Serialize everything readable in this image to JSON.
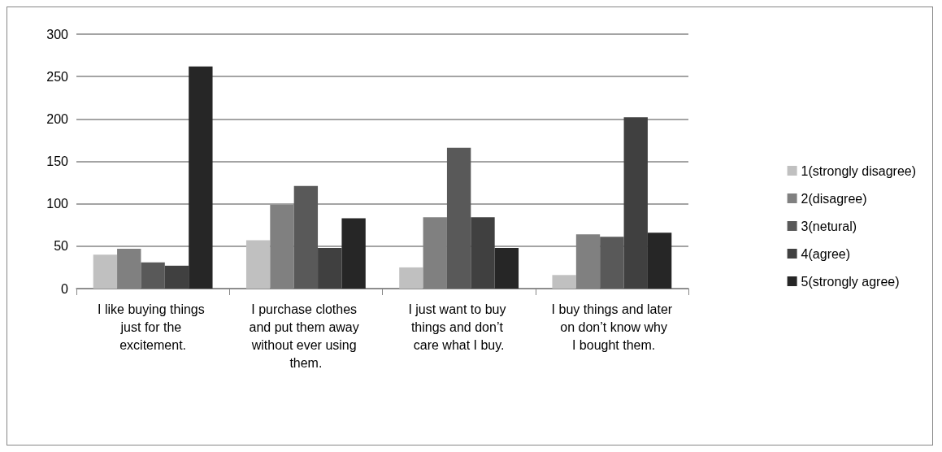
{
  "chart_data": {
    "type": "bar",
    "categories": [
      "I like buying things just for the excitement.",
      "I purchase clothes and put them away without ever using them.",
      "I just want to buy things and don’t care what I buy.",
      "I buy things and later on don’t know why I bought them."
    ],
    "series": [
      {
        "name": "1(strongly disagree)",
        "color": "#c0c0c0",
        "values": [
          40,
          57,
          25,
          16
        ]
      },
      {
        "name": "2(disagree)",
        "color": "#808080",
        "values": [
          47,
          99,
          84,
          64
        ]
      },
      {
        "name": "3(netural)",
        "color": "#595959",
        "values": [
          31,
          121,
          166,
          61
        ]
      },
      {
        "name": "4(agree)",
        "color": "#404040",
        "values": [
          27,
          48,
          84,
          202
        ]
      },
      {
        "name": "5(strongly agree)",
        "color": "#262626",
        "values": [
          262,
          83,
          48,
          66
        ]
      }
    ],
    "ylim": [
      0,
      300
    ],
    "yticks": [
      0,
      50,
      100,
      150,
      200,
      250,
      300
    ],
    "grid": "y",
    "legend": "right"
  }
}
